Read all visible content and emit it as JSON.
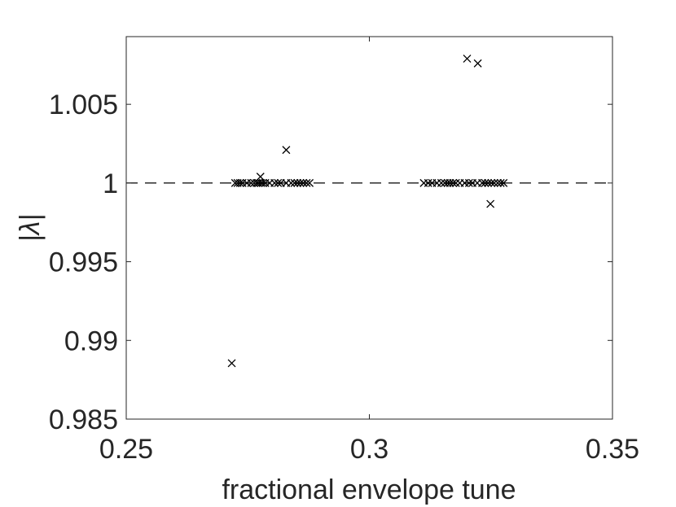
{
  "chart_data": {
    "type": "scatter",
    "title": "",
    "xlabel": "fractional envelope tune",
    "ylabel": "|λ|",
    "xlim": [
      0.25,
      0.35
    ],
    "ylim": [
      0.985,
      1.0093
    ],
    "xticks": [
      0.25,
      0.3,
      0.35
    ],
    "xtick_labels": [
      "0.25",
      "0.3",
      "0.35"
    ],
    "yticks": [
      0.985,
      0.99,
      0.995,
      1.0,
      1.005
    ],
    "ytick_labels": [
      "0.985",
      "0.99",
      "0.995",
      "1",
      "1.005"
    ],
    "grid": false,
    "legend": false,
    "marker": "x",
    "marker_color": "#000000",
    "reference_line": {
      "y": 1.0,
      "style": "dashed",
      "color": "#000000"
    },
    "series": [
      {
        "points": [
          [
            0.2717,
            0.98855
          ],
          [
            0.2724,
            1.0
          ],
          [
            0.2729,
            1.0
          ],
          [
            0.2734,
            1.0
          ],
          [
            0.2739,
            1.0
          ],
          [
            0.2748,
            1.0
          ],
          [
            0.2757,
            1.0
          ],
          [
            0.2763,
            1.0
          ],
          [
            0.2768,
            1.0
          ],
          [
            0.2772,
            1.0
          ],
          [
            0.2777,
            1.0
          ],
          [
            0.2781,
            1.0
          ],
          [
            0.2786,
            1.0
          ],
          [
            0.2795,
            1.0
          ],
          [
            0.2805,
            1.0
          ],
          [
            0.2812,
            1.0
          ],
          [
            0.2818,
            1.0
          ],
          [
            0.2829,
            1.0
          ],
          [
            0.2839,
            1.0
          ],
          [
            0.2846,
            1.0
          ],
          [
            0.2852,
            1.0
          ],
          [
            0.2858,
            1.0
          ],
          [
            0.2864,
            1.0
          ],
          [
            0.2871,
            1.0
          ],
          [
            0.2877,
            1.0
          ],
          [
            0.2776,
            1.0004
          ],
          [
            0.2829,
            1.0021
          ],
          [
            0.3112,
            1.0
          ],
          [
            0.3121,
            1.0
          ],
          [
            0.3129,
            1.0
          ],
          [
            0.3139,
            1.0
          ],
          [
            0.3148,
            1.0
          ],
          [
            0.3155,
            1.0
          ],
          [
            0.3161,
            1.0
          ],
          [
            0.3166,
            1.0
          ],
          [
            0.3172,
            1.0
          ],
          [
            0.3178,
            1.0
          ],
          [
            0.3186,
            1.0
          ],
          [
            0.3196,
            1.0
          ],
          [
            0.3205,
            1.0
          ],
          [
            0.3212,
            1.0
          ],
          [
            0.3222,
            1.0
          ],
          [
            0.3232,
            1.0
          ],
          [
            0.3238,
            1.0
          ],
          [
            0.3244,
            1.0
          ],
          [
            0.3251,
            1.0
          ],
          [
            0.3257,
            1.0
          ],
          [
            0.3264,
            1.0
          ],
          [
            0.327,
            1.0
          ],
          [
            0.3276,
            1.0
          ],
          [
            0.3201,
            1.0079
          ],
          [
            0.3223,
            1.0076
          ],
          [
            0.3249,
            0.99867
          ]
        ]
      }
    ]
  }
}
